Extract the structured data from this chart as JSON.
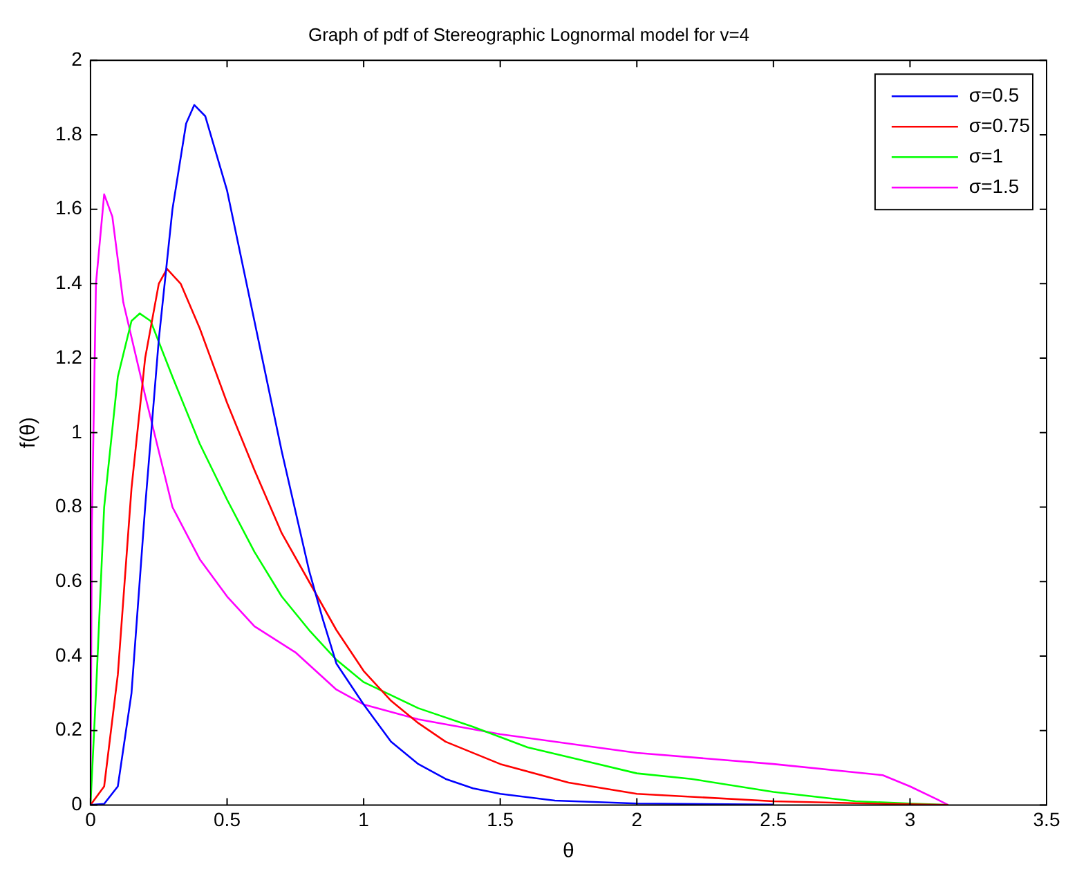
{
  "chart_data": {
    "type": "line",
    "title": "Graph of pdf of Stereographic Lognormal model for v=4",
    "xlabel": "θ",
    "ylabel": "f(θ)",
    "xlim": [
      0,
      3.5
    ],
    "xticks": [
      0,
      0.5,
      1,
      1.5,
      2,
      2.5,
      3,
      3.5
    ],
    "ylim": [
      0,
      2
    ],
    "yticks": [
      0,
      0.2,
      0.4,
      0.6,
      0.8,
      1,
      1.2,
      1.4,
      1.6,
      1.8,
      2
    ],
    "legend": "top right",
    "marker": "none",
    "line_style": "solid",
    "series": [
      {
        "name": "σ=0.5",
        "color": "#0000ff",
        "x": [
          0,
          0.05,
          0.1,
          0.15,
          0.2,
          0.25,
          0.3,
          0.35,
          0.38,
          0.42,
          0.5,
          0.6,
          0.7,
          0.8,
          0.85,
          0.9,
          1.0,
          1.1,
          1.2,
          1.3,
          1.4,
          1.5,
          1.7,
          2.0,
          2.5
        ],
        "values": [
          0,
          0.003,
          0.05,
          0.3,
          0.8,
          1.25,
          1.6,
          1.83,
          1.88,
          1.85,
          1.65,
          1.3,
          0.95,
          0.63,
          0.5,
          0.38,
          0.27,
          0.17,
          0.11,
          0.07,
          0.045,
          0.03,
          0.012,
          0.004,
          0.001
        ]
      },
      {
        "name": "σ=0.75",
        "color": "#ff0000",
        "x": [
          0,
          0.05,
          0.1,
          0.15,
          0.2,
          0.25,
          0.28,
          0.33,
          0.4,
          0.5,
          0.6,
          0.7,
          0.8,
          0.9,
          1.0,
          1.1,
          1.2,
          1.3,
          1.5,
          1.75,
          2.0,
          2.5,
          2.85,
          3.14
        ],
        "values": [
          0,
          0.05,
          0.35,
          0.85,
          1.2,
          1.4,
          1.44,
          1.4,
          1.28,
          1.08,
          0.9,
          0.73,
          0.6,
          0.47,
          0.36,
          0.28,
          0.22,
          0.17,
          0.11,
          0.06,
          0.03,
          0.01,
          0.004,
          0
        ]
      },
      {
        "name": "σ=1",
        "color": "#00ff00",
        "x": [
          0,
          0.02,
          0.05,
          0.1,
          0.15,
          0.18,
          0.22,
          0.3,
          0.4,
          0.5,
          0.6,
          0.7,
          0.8,
          0.9,
          1.0,
          1.2,
          1.4,
          1.6,
          1.8,
          2.0,
          2.2,
          2.5,
          2.8,
          3.0,
          3.14
        ],
        "values": [
          0,
          0.3,
          0.8,
          1.15,
          1.3,
          1.32,
          1.3,
          1.15,
          0.97,
          0.82,
          0.68,
          0.56,
          0.47,
          0.39,
          0.33,
          0.26,
          0.21,
          0.155,
          0.12,
          0.085,
          0.07,
          0.035,
          0.01,
          0.004,
          0
        ]
      },
      {
        "name": "σ=1.5",
        "color": "#ff00ff",
        "x": [
          0,
          0.005,
          0.02,
          0.05,
          0.08,
          0.12,
          0.2,
          0.3,
          0.4,
          0.5,
          0.6,
          0.75,
          0.9,
          1.0,
          1.2,
          1.5,
          1.8,
          2.0,
          2.5,
          2.9,
          3.0,
          3.1,
          3.14
        ],
        "values": [
          0,
          0.75,
          1.4,
          1.64,
          1.58,
          1.35,
          1.1,
          0.8,
          0.66,
          0.56,
          0.48,
          0.41,
          0.31,
          0.27,
          0.23,
          0.19,
          0.16,
          0.14,
          0.11,
          0.08,
          0.05,
          0.015,
          0
        ]
      }
    ]
  }
}
